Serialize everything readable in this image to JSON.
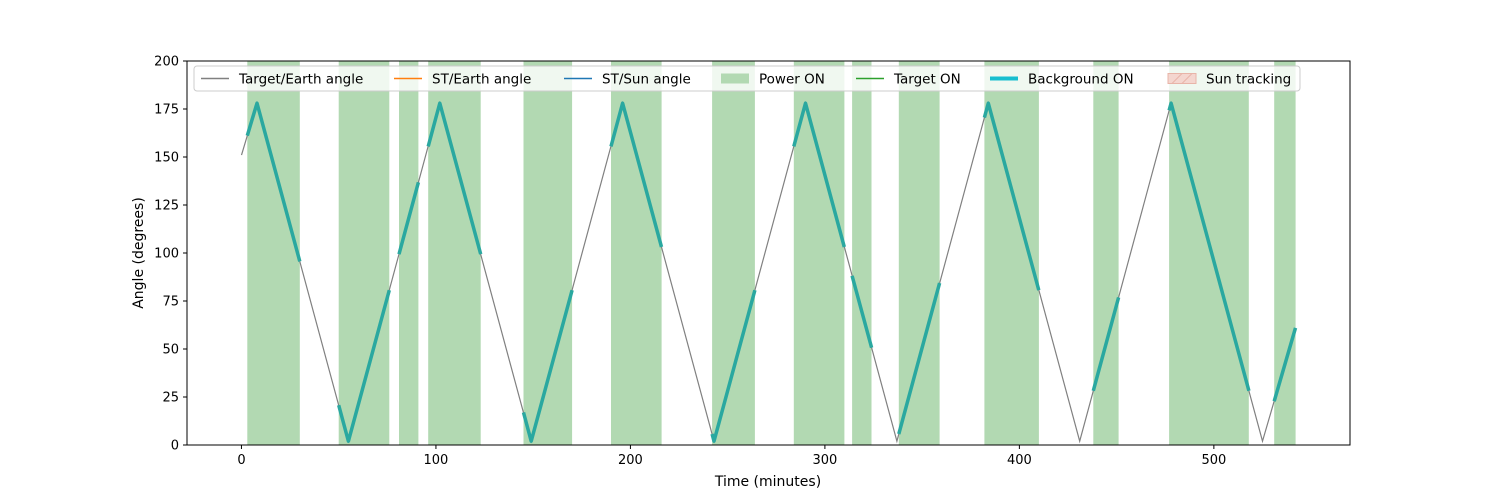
{
  "chart_data": {
    "type": "line",
    "xlabel": "Time (minutes)",
    "ylabel": "Angle (degrees)",
    "xlim": [
      -28,
      570
    ],
    "ylim": [
      0,
      200
    ],
    "xticks": [
      0,
      100,
      200,
      300,
      400,
      500
    ],
    "yticks": [
      0,
      25,
      50,
      75,
      100,
      125,
      150,
      175,
      200
    ],
    "grid": false,
    "legend_placement": "top",
    "legend": [
      {
        "label": "Target/Earth angle",
        "kind": "line",
        "color": "#808080"
      },
      {
        "label": "ST/Earth angle",
        "kind": "line",
        "color": "#ff7f0e"
      },
      {
        "label": "ST/Sun angle",
        "kind": "line",
        "color": "#1f77b4"
      },
      {
        "label": "Power ON",
        "kind": "patch",
        "color": "#b2d9b2"
      },
      {
        "label": "Target ON",
        "kind": "line",
        "color": "#2ca02c"
      },
      {
        "label": "Background ON",
        "kind": "thickline",
        "color": "#17becf"
      },
      {
        "label": "Sun tracking",
        "kind": "hatch",
        "color": "#f4d6cf"
      }
    ],
    "power_on_intervals": [
      [
        3,
        30
      ],
      [
        50,
        76
      ],
      [
        81,
        91
      ],
      [
        96,
        123
      ],
      [
        145,
        170
      ],
      [
        190,
        216
      ],
      [
        242,
        264
      ],
      [
        284,
        310
      ],
      [
        314,
        324
      ],
      [
        338,
        359
      ],
      [
        382,
        410
      ],
      [
        438,
        451
      ],
      [
        477,
        518
      ],
      [
        531,
        542
      ]
    ],
    "target_earth_vertices": [
      [
        0,
        151
      ],
      [
        8,
        178
      ],
      [
        55,
        2
      ],
      [
        102,
        178
      ],
      [
        149,
        2
      ],
      [
        196,
        178
      ],
      [
        243,
        2
      ],
      [
        290,
        178
      ],
      [
        337,
        2
      ],
      [
        384,
        178
      ],
      [
        431,
        2
      ],
      [
        478,
        178
      ],
      [
        525,
        2
      ],
      [
        542,
        61
      ]
    ],
    "background_on_segments": [
      [
        3,
        30
      ],
      [
        50,
        76
      ],
      [
        81,
        91
      ],
      [
        96,
        123
      ],
      [
        145,
        170
      ],
      [
        190,
        216
      ],
      [
        242,
        264
      ],
      [
        284,
        310
      ],
      [
        314,
        324
      ],
      [
        338,
        359
      ],
      [
        382,
        410
      ],
      [
        438,
        451
      ],
      [
        477,
        518
      ],
      [
        531,
        542
      ]
    ],
    "colors": {
      "target_earth": "#808080",
      "background_on": "#2aa8a0",
      "power_on": "#b2d9b2"
    }
  }
}
